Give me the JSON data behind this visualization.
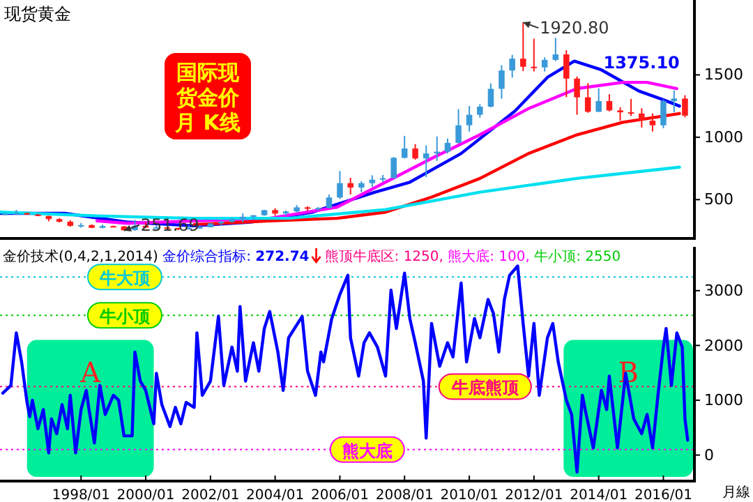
{
  "chart_data": [
    {
      "type": "candlestick",
      "title": "现货黄金",
      "tick_labels": "y",
      "xlim": [
        "1995-07",
        "2016-12"
      ],
      "ylim": [
        200,
        2100
      ],
      "yticks": [
        500,
        1000,
        1500
      ],
      "x": [
        "1995-09",
        "1996-01",
        "1996-05",
        "1996-09",
        "1997-01",
        "1997-05",
        "1997-09",
        "1998-01",
        "1998-05",
        "1998-09",
        "1999-01",
        "1999-05",
        "1999-09",
        "2000-01",
        "2000-05",
        "2000-09",
        "2001-01",
        "2001-05",
        "2001-09",
        "2002-01",
        "2002-05",
        "2002-09",
        "2003-01",
        "2003-05",
        "2003-09",
        "2004-01",
        "2004-05",
        "2004-09",
        "2005-01",
        "2005-05",
        "2005-09",
        "2006-01",
        "2006-05",
        "2006-09",
        "2007-01",
        "2007-05",
        "2007-09",
        "2008-01",
        "2008-05",
        "2008-09",
        "2009-01",
        "2009-05",
        "2009-09",
        "2010-01",
        "2010-05",
        "2010-09",
        "2011-01",
        "2011-05",
        "2011-09",
        "2012-01",
        "2012-05",
        "2012-09",
        "2013-01",
        "2013-05",
        "2013-09",
        "2014-01",
        "2014-05",
        "2014-09",
        "2015-01",
        "2015-05",
        "2015-09",
        "2016-01",
        "2016-05",
        "2016-09"
      ],
      "ohlc": [
        [
          383,
          396,
          380,
          387
        ],
        [
          387,
          418,
          381,
          392
        ],
        [
          392,
          395,
          378,
          380
        ],
        [
          380,
          386,
          367,
          369
        ],
        [
          369,
          370,
          326,
          344
        ],
        [
          344,
          351,
          318,
          323
        ],
        [
          323,
          336,
          283,
          290
        ],
        [
          290,
          313,
          275,
          296
        ],
        [
          296,
          302,
          272,
          274
        ],
        [
          274,
          300,
          270,
          288
        ],
        [
          288,
          292,
          278,
          285
        ],
        [
          285,
          289,
          251.69,
          255
        ],
        [
          255,
          338,
          252,
          290
        ],
        [
          290,
          316,
          272,
          276
        ],
        [
          276,
          294,
          270,
          277
        ],
        [
          277,
          278,
          263,
          273
        ],
        [
          273,
          274,
          255,
          264
        ],
        [
          264,
          293,
          261,
          273
        ],
        [
          273,
          294,
          271,
          279
        ],
        [
          279,
          313,
          277,
          310
        ],
        [
          310,
          330,
          297,
          323
        ],
        [
          323,
          351,
          312,
          345
        ],
        [
          345,
          389,
          319,
          363
        ],
        [
          363,
          375,
          340,
          375
        ],
        [
          375,
          418,
          370,
          416
        ],
        [
          416,
          431,
          371,
          389
        ],
        [
          389,
          412,
          372,
          405
        ],
        [
          405,
          456,
          397,
          438
        ],
        [
          438,
          447,
          410,
          430
        ],
        [
          430,
          440,
          412,
          433
        ],
        [
          433,
          540,
          429,
          517
        ],
        [
          517,
          730,
          506,
          632
        ],
        [
          632,
          675,
          541,
          597
        ],
        [
          597,
          647,
          560,
          632
        ],
        [
          632,
          695,
          602,
          660
        ],
        [
          660,
          698,
          640,
          672
        ],
        [
          672,
          842,
          670,
          835
        ],
        [
          835,
          1011,
          830,
          910
        ],
        [
          910,
          945,
          820,
          830
        ],
        [
          830,
          935,
          681,
          870
        ],
        [
          870,
          1006,
          810,
          884
        ],
        [
          884,
          990,
          870,
          955
        ],
        [
          955,
          1226,
          950,
          1096
        ],
        [
          1096,
          1250,
          1045,
          1180
        ],
        [
          1180,
          1265,
          1157,
          1245
        ],
        [
          1245,
          1432,
          1240,
          1388
        ],
        [
          1388,
          1577,
          1308,
          1535
        ],
        [
          1535,
          1660,
          1478,
          1630
        ],
        [
          1630,
          1920.8,
          1530,
          1565
        ],
        [
          1565,
          1790,
          1527,
          1560
        ],
        [
          1560,
          1640,
          1527,
          1620
        ],
        [
          1620,
          1796,
          1610,
          1664
        ],
        [
          1664,
          1697,
          1321,
          1470
        ],
        [
          1470,
          1487,
          1180,
          1320
        ],
        [
          1320,
          1433,
          1196,
          1204
        ],
        [
          1204,
          1392,
          1202,
          1290
        ],
        [
          1290,
          1345,
          1207,
          1215
        ],
        [
          1215,
          1240,
          1132,
          1200
        ],
        [
          1200,
          1307,
          1170,
          1190
        ],
        [
          1190,
          1232,
          1077,
          1133
        ],
        [
          1133,
          1191,
          1046,
          1096
        ],
        [
          1096,
          1303,
          1072,
          1290
        ],
        [
          1290,
          1375.1,
          1200,
          1310
        ],
        [
          1310,
          1337,
          1160,
          1173
        ]
      ],
      "series": [
        {
          "type": "line",
          "color": "#0000ff",
          "x": [
            "1995-07",
            "1997-07",
            "1999-06",
            "2001-07",
            "2003-04",
            "2005-03",
            "2007-02",
            "2008-03",
            "2009-10",
            "2011-06",
            "2012-06",
            "2013-04",
            "2014-02",
            "2015-04",
            "2016-01",
            "2016-07"
          ],
          "values": [
            390,
            390,
            320,
            290,
            320,
            400,
            560,
            640,
            870,
            1210,
            1480,
            1610,
            1540,
            1370,
            1300,
            1250
          ]
        },
        {
          "type": "line",
          "color": "#ff00ff",
          "x": [
            "1998-07",
            "1999-06",
            "2003-11",
            "2005-12",
            "2007-06",
            "2008-11",
            "2010-05",
            "2011-11",
            "2013-05",
            "2014-10",
            "2015-07",
            "2016-06"
          ],
          "values": [
            330,
            310,
            350,
            440,
            640,
            830,
            1020,
            1230,
            1390,
            1440,
            1440,
            1390
          ]
        },
        {
          "type": "line",
          "color": "#ff0000",
          "x": [
            "2001-07",
            "2003-11",
            "2005-12",
            "2007-06",
            "2008-11",
            "2010-05",
            "2011-11",
            "2013-05",
            "2014-10",
            "2016-07"
          ],
          "values": [
            300,
            330,
            350,
            400,
            520,
            670,
            870,
            1020,
            1120,
            1190
          ]
        },
        {
          "type": "line",
          "color": "#00e0f0",
          "x": [
            "1995-07",
            "1998-07",
            "2001-07",
            "2004-06",
            "2007-06",
            "2010-05",
            "2013-05",
            "2016-07"
          ],
          "values": [
            400,
            370,
            350,
            350,
            420,
            560,
            670,
            760
          ]
        }
      ],
      "annotations": [
        "国际现货金价月 K线",
        {
          "text": "1920.80",
          "x": "2011-09",
          "y": 1920.8
        },
        {
          "text": "251.69",
          "x": "1999-05",
          "y": 251.69
        },
        {
          "text": "1375.10",
          "x": "2016-05",
          "y": 1375.1
        }
      ]
    },
    {
      "type": "line",
      "title": "金价技术(0,4,2,1,2014)",
      "xlim": [
        "1995-07",
        "2016-12"
      ],
      "ylim": [
        -450,
        3800
      ],
      "yticks": [
        0,
        1000,
        2000,
        3000
      ],
      "xticks": [
        {
          "value": "1998-01",
          "label": "1998/01"
        },
        {
          "value": "2000-01",
          "label": "2000/01"
        },
        {
          "value": "2002-01",
          "label": "2002/01"
        },
        {
          "value": "2004-01",
          "label": "2004/01"
        },
        {
          "value": "2006-01",
          "label": "2006/01"
        },
        {
          "value": "2008-01",
          "label": "2008/01"
        },
        {
          "value": "2010-01",
          "label": "2010/01"
        },
        {
          "value": "2012-01",
          "label": "2012/01"
        },
        {
          "value": "2014-01",
          "label": "2014/01"
        },
        {
          "value": "2016-01",
          "label": "2016/01"
        }
      ],
      "series": [
        {
          "name": "金价综合指标:",
          "color": "#0000ff",
          "x": [
            "1995-08",
            "1995-11",
            "1996-01",
            "1996-03",
            "1996-05",
            "1996-06",
            "1996-07",
            "1996-09",
            "1996-11",
            "1997-01",
            "1997-02",
            "1997-04",
            "1997-06",
            "1997-08",
            "1997-09",
            "1997-11",
            "1998-01",
            "1998-03",
            "1998-04",
            "1998-06",
            "1998-08",
            "1998-10",
            "1999-01",
            "1999-03",
            "1999-05",
            "1999-08",
            "1999-09",
            "1999-11",
            "2000-01",
            "2000-04",
            "2000-05",
            "2000-07",
            "2000-10",
            "2000-12",
            "2001-02",
            "2001-04",
            "2001-07",
            "2001-08",
            "2001-10",
            "2002-01",
            "2002-04",
            "2002-06",
            "2002-09",
            "2002-11",
            "2002-12",
            "2003-02",
            "2003-05",
            "2003-07",
            "2003-09",
            "2003-11",
            "2004-02",
            "2004-04",
            "2004-06",
            "2004-11",
            "2005-01",
            "2005-04",
            "2005-06",
            "2005-07",
            "2005-10",
            "2006-01",
            "2006-04",
            "2006-05",
            "2006-08",
            "2006-10",
            "2006-12",
            "2007-03",
            "2007-06",
            "2007-08",
            "2007-10",
            "2008-01",
            "2008-03",
            "2008-05",
            "2008-08",
            "2008-09",
            "2008-11",
            "2009-02",
            "2009-05",
            "2009-07",
            "2009-10",
            "2009-12",
            "2010-03",
            "2010-05",
            "2010-08",
            "2010-10",
            "2010-12",
            "2011-02",
            "2011-04",
            "2011-07",
            "2011-09",
            "2011-11",
            "2012-01",
            "2012-03",
            "2012-06",
            "2012-08",
            "2012-10",
            "2013-01",
            "2013-03",
            "2013-05",
            "2013-07",
            "2013-08",
            "2013-11",
            "2014-02",
            "2014-04",
            "2014-05",
            "2014-08",
            "2014-11",
            "2015-02",
            "2015-05",
            "2015-07",
            "2015-09",
            "2015-11",
            "2016-01",
            "2016-02",
            "2016-04",
            "2016-06",
            "2016-08",
            "2016-09",
            "2016-10"
          ],
          "values": [
            1130,
            1270,
            2230,
            1700,
            960,
            700,
            1000,
            480,
            830,
            40,
            660,
            390,
            920,
            480,
            1090,
            40,
            830,
            1180,
            830,
            220,
            1270,
            740,
            1090,
            1000,
            350,
            350,
            1880,
            1350,
            1180,
            570,
            1490,
            920,
            520,
            870,
            570,
            960,
            870,
            2230,
            1090,
            1350,
            2530,
            1270,
            1970,
            1530,
            2710,
            1350,
            2050,
            1530,
            2310,
            2620,
            1880,
            1180,
            2140,
            2530,
            1530,
            1090,
            1880,
            1700,
            2490,
            2930,
            3280,
            2140,
            1440,
            2050,
            2230,
            1970,
            1440,
            3010,
            2310,
            3320,
            2490,
            2050,
            1350,
            310,
            2400,
            1620,
            2050,
            1790,
            3140,
            1700,
            2490,
            2140,
            2840,
            2580,
            1880,
            2840,
            3280,
            3450,
            2400,
            1440,
            2400,
            1090,
            2140,
            2400,
            1700,
            1000,
            740,
            -310,
            1090,
            830,
            130,
            1180,
            830,
            1440,
            130,
            1490,
            660,
            390,
            740,
            130,
            1090,
            1970,
            2310,
            1270,
            2230,
            1970,
            660,
            272.74
          ]
        }
      ],
      "ref_lines": [
        {
          "axis": "y",
          "value": 1250,
          "label": "牛底熊顶",
          "color": "#ff0080",
          "line_style": "dotted"
        },
        {
          "axis": "y",
          "value": 100,
          "label": "熊大底",
          "color": "#ff00ff",
          "line_style": "dotted"
        },
        {
          "axis": "y",
          "value": 2550,
          "label": "牛小顶",
          "color": "#00cc00",
          "line_style": "dotted"
        },
        {
          "axis": "y",
          "value": 3250,
          "label": "牛大顶",
          "color": "#00c8d8",
          "line_style": "dotted"
        }
      ],
      "bands": [
        {
          "axis": "x",
          "from": "1996-05",
          "to": "2000-04",
          "label": "A",
          "color": "#00ee99"
        },
        {
          "axis": "x",
          "from": "2012-12",
          "to": "2016-12",
          "label": "B",
          "color": "#00ee99"
        }
      ],
      "annotations": [
        "272.74",
        "熊顶牛底区: 1250,",
        "熊大底: 100,",
        "牛小顶: 2550",
        "月線"
      ]
    }
  ]
}
